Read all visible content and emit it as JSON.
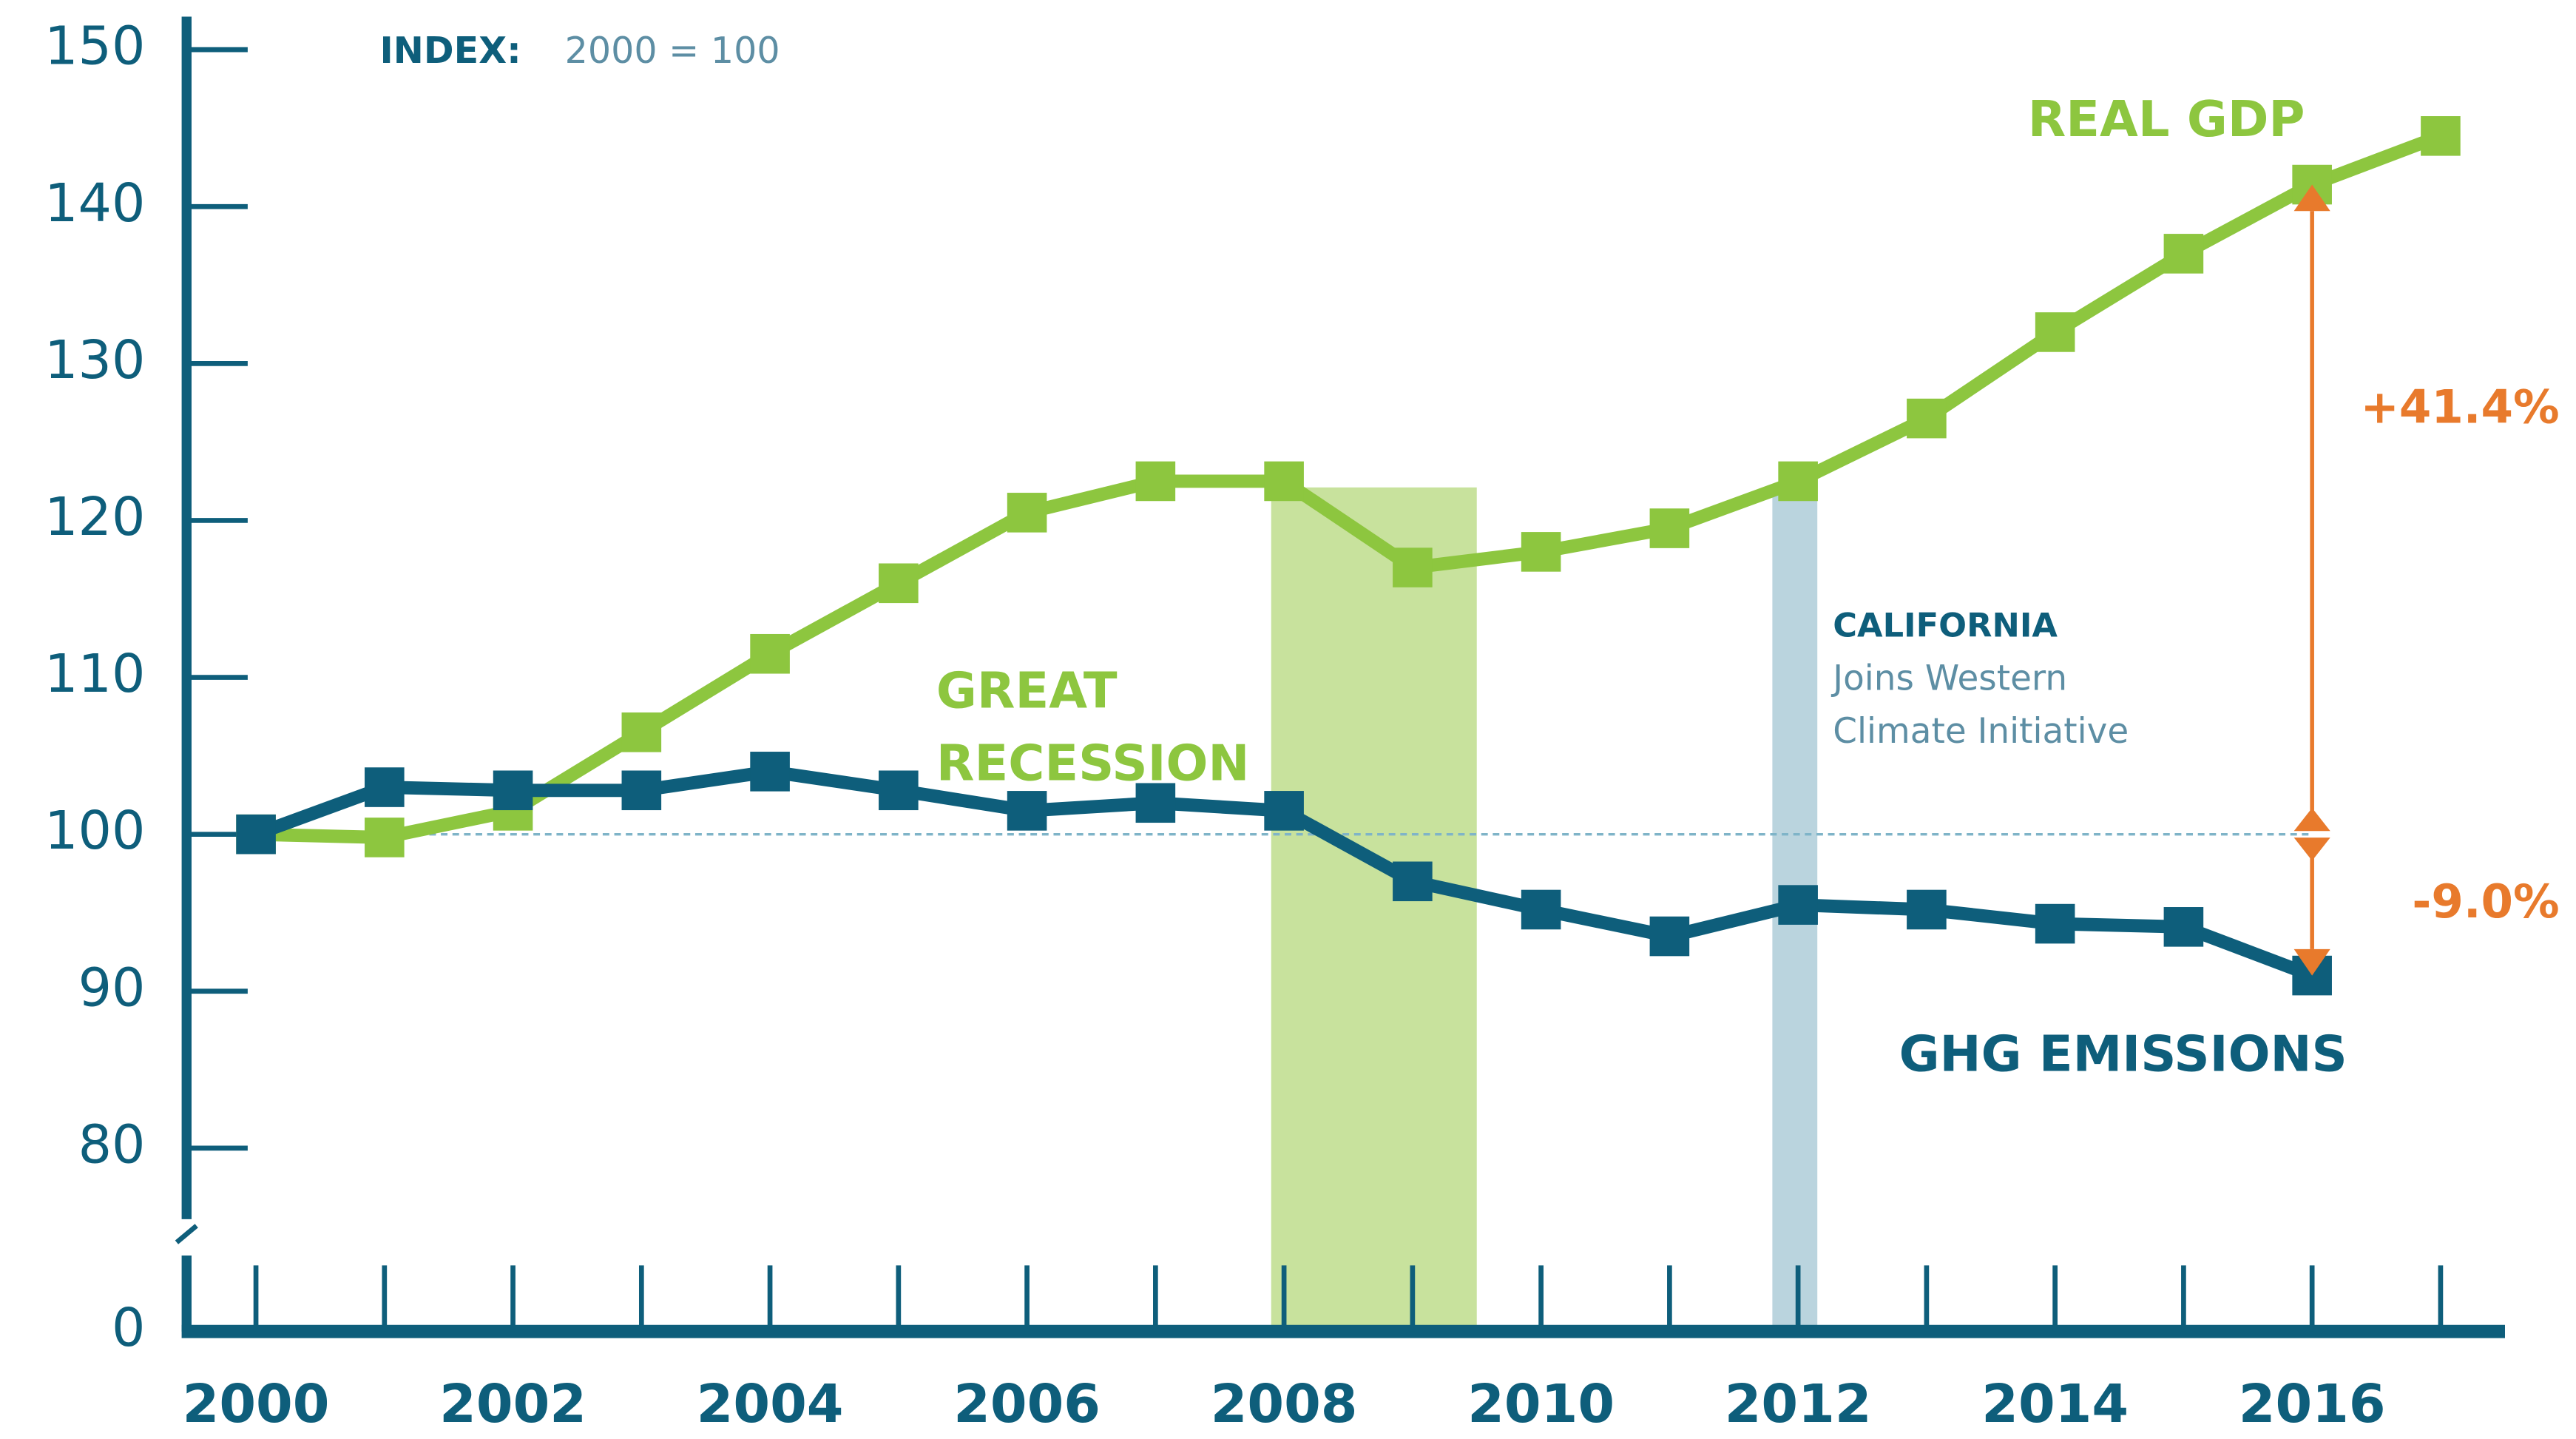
{
  "chart_data": {
    "type": "line",
    "subtitle_key": "INDEX:",
    "subtitle": "2000 = 100",
    "x": [
      2000,
      2001,
      2002,
      2003,
      2004,
      2005,
      2006,
      2007,
      2008,
      2009,
      2010,
      2011,
      2012,
      2013,
      2014,
      2015,
      2016,
      2017
    ],
    "series": [
      {
        "name": "REAL GDP",
        "color": "#8dc63f",
        "values": [
          100,
          99.8,
          101.5,
          106.5,
          111.5,
          116,
          120.5,
          122.5,
          122.5,
          117,
          118,
          119.5,
          122.5,
          126.5,
          132,
          137,
          141.4,
          144.5
        ]
      },
      {
        "name": "GHG EMISSIONS",
        "color": "#0e5e7b",
        "values": [
          100,
          103,
          102.8,
          102.8,
          104,
          102.8,
          101.5,
          102,
          101.5,
          97,
          95.2,
          93.5,
          95.5,
          95.2,
          94.3,
          94.1,
          91,
          null
        ]
      }
    ],
    "xlim": [
      2000,
      2017
    ],
    "xticks": [
      2000,
      2002,
      2004,
      2006,
      2008,
      2010,
      2012,
      2014,
      2016
    ],
    "minor_xticks": [
      2001,
      2003,
      2005,
      2007,
      2009,
      2011,
      2013,
      2015,
      2017
    ],
    "ylim": [
      80,
      150
    ],
    "yticks": [
      0,
      80,
      90,
      100,
      110,
      120,
      130,
      140,
      150
    ],
    "axis_break": true,
    "reference_line": 100,
    "shaded_regions": [
      {
        "start": 2007.9,
        "end": 2009.5,
        "color": "#c8e29d",
        "label": [
          "GREAT",
          "RECESSION"
        ]
      },
      {
        "start": 2011.8,
        "end": 2012.15,
        "color": "#bad4de",
        "label": [
          "CALIFORNIA",
          "Joins Western",
          "Climate Initiative"
        ]
      }
    ],
    "annotations": [
      {
        "text": "+41.4%",
        "x": 2016,
        "from": 100,
        "to": 141.4,
        "color": "#e87a2c"
      },
      {
        "text": "-9.0%",
        "x": 2016,
        "from": 100,
        "to": 91,
        "color": "#e87a2c"
      }
    ]
  }
}
